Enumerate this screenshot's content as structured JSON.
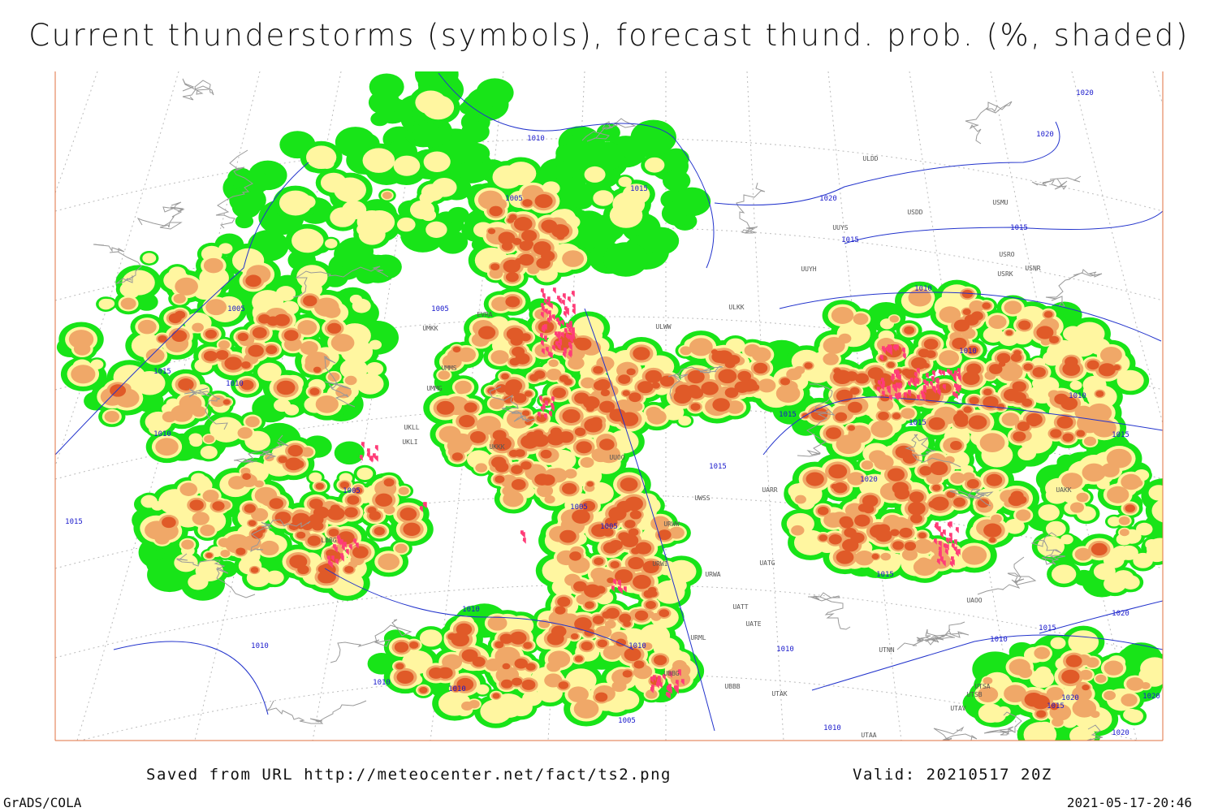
{
  "header": {
    "title": "Current thunderstorms (symbols), forecast thund. prob. (%, shaded)"
  },
  "map": {
    "isobar_labels": [
      "1010",
      "1005",
      "1015",
      "1020",
      "1015",
      "1015",
      "1010",
      "1010",
      "1010",
      "1015",
      "1015",
      "1005",
      "1005",
      "1015",
      "1010",
      "1010",
      "1015",
      "1015",
      "1020",
      "1005",
      "1005",
      "1005",
      "1015",
      "1015",
      "1010",
      "1010",
      "1010",
      "1010",
      "1010",
      "1010",
      "1010",
      "1005",
      "1010",
      "1020",
      "1020",
      "1020",
      "1015",
      "1020",
      "1015",
      "1020",
      "1020"
    ],
    "station_labels": [
      "ULDD",
      "USMU",
      "USDD",
      "UUYS",
      "USRO",
      "USRK",
      "USNR",
      "UUYH",
      "ULKK",
      "ULWW",
      "UMKK",
      "EVRA",
      "UMMS",
      "UMMG",
      "UKLL",
      "UKLI",
      "UKKK",
      "UUOO",
      "UARR",
      "UWSS",
      "URWW",
      "URWI",
      "URWA",
      "UATG",
      "UATT",
      "UATE",
      "URML",
      "UBBB",
      "UTAK",
      "UTNN",
      "UAKK",
      "UAOO",
      "UTSB",
      "UTSA",
      "UTAV",
      "UTAA",
      "UBBG",
      "LBBG"
    ]
  },
  "footer": {
    "source": "Saved from URL http://meteocenter.net/fact/ts2.png",
    "valid": "Valid: 20210517 20Z",
    "software": "GrADS/COLA",
    "timestamp": "2021-05-17-20:46"
  }
}
